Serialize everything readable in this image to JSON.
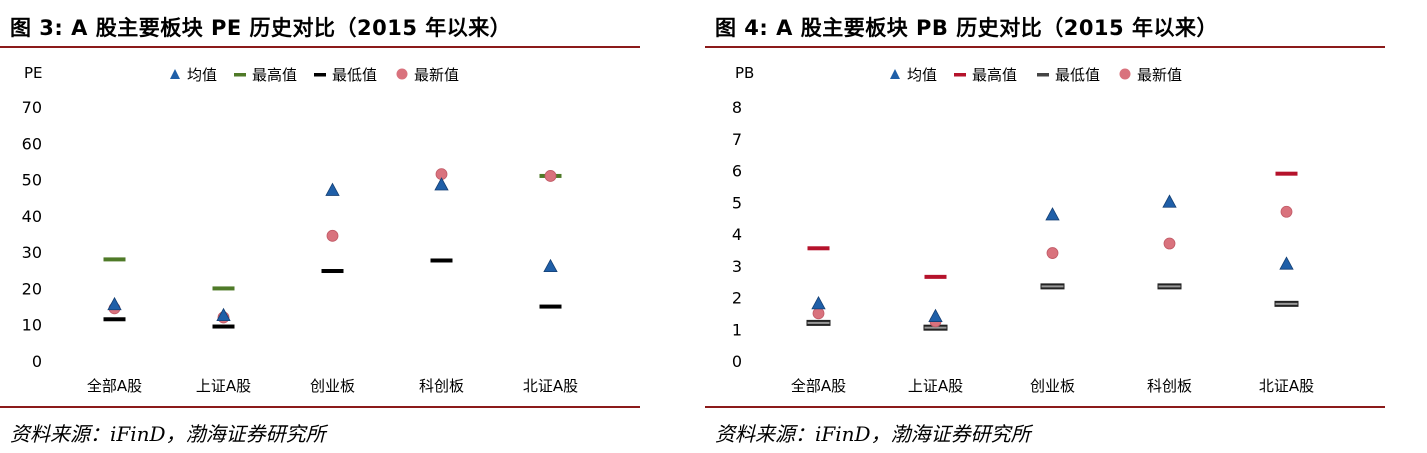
{
  "figures": [
    {
      "title": "图 3:  A 股主要板块 PE 历史对比（2015 年以来）",
      "source": "资料来源：iFinD，渤海证券研究所",
      "colors": {
        "max": "#4f7a28",
        "min": "#000000",
        "avg": "#1f5fa8",
        "latest": "#d9727d"
      }
    },
    {
      "title": "图 4:  A 股主要板块 PB 历史对比（2015 年以来）",
      "source": "资料来源：iFinD，渤海证券研究所",
      "colors": {
        "max": "#b5122b",
        "min": "#444444",
        "avg": "#1f5fa8",
        "latest": "#d9727d"
      }
    }
  ],
  "chart_data": [
    {
      "type": "scatter",
      "ylabel": "PE",
      "ylim": [
        0,
        70
      ],
      "yticks": [
        0,
        10,
        20,
        30,
        40,
        50,
        60,
        70
      ],
      "categories": [
        "全部A股",
        "上证A股",
        "创业板",
        "科创板",
        "北证A股"
      ],
      "legend_position": "top",
      "grid": false,
      "series": [
        {
          "name": "均值",
          "marker": "triangle",
          "values": [
            15.5,
            12.5,
            47.0,
            48.5,
            26.0
          ]
        },
        {
          "name": "最高值",
          "marker": "dash",
          "values": [
            28.0,
            20.0,
            null,
            null,
            51.0
          ]
        },
        {
          "name": "最低值",
          "marker": "dash",
          "values": [
            11.5,
            9.5,
            24.8,
            27.7,
            15.0
          ]
        },
        {
          "name": "最新值",
          "marker": "circle",
          "values": [
            14.5,
            12.0,
            34.5,
            51.5,
            51.0
          ]
        }
      ]
    },
    {
      "type": "scatter",
      "ylabel": "PB",
      "ylim": [
        0,
        8
      ],
      "yticks": [
        0,
        1,
        2,
        3,
        4,
        5,
        6,
        7,
        8
      ],
      "categories": [
        "全部A股",
        "上证A股",
        "创业板",
        "科创板",
        "北证A股"
      ],
      "legend_position": "top",
      "grid": false,
      "series": [
        {
          "name": "均值",
          "marker": "triangle",
          "values": [
            1.8,
            1.4,
            4.6,
            5.0,
            3.05
          ]
        },
        {
          "name": "最高值",
          "marker": "dash",
          "values": [
            3.55,
            2.65,
            null,
            null,
            5.9
          ]
        },
        {
          "name": "最低值",
          "marker": "dash",
          "values": [
            1.2,
            1.05,
            2.35,
            2.35,
            1.8
          ]
        },
        {
          "name": "最新值",
          "marker": "circle",
          "values": [
            1.5,
            1.25,
            3.4,
            3.7,
            4.7
          ]
        }
      ]
    }
  ]
}
